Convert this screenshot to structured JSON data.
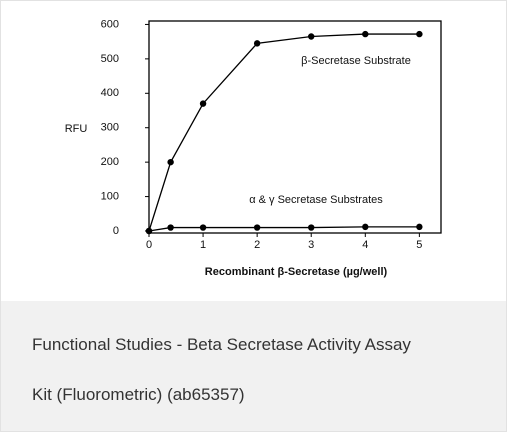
{
  "chart_data": {
    "type": "line",
    "y_label": "RFU",
    "x_label": "Recombinant β-Secretase (µg/well)",
    "x": [
      0,
      0.4,
      1,
      2,
      3,
      4,
      5
    ],
    "series": [
      {
        "name": "β-Secretase Substrate",
        "color": "#000000",
        "values": [
          0,
          200,
          370,
          545,
          565,
          572,
          572
        ]
      },
      {
        "name": "α & γ Secretase Substrates",
        "color": "#000000",
        "values": [
          0,
          10,
          10,
          10,
          10,
          12,
          12
        ]
      }
    ],
    "xlim": [
      0,
      5.4
    ],
    "xticks": [
      0,
      1,
      2,
      3,
      4,
      5
    ],
    "ylim": [
      0,
      610
    ],
    "yticks": [
      0,
      100,
      200,
      300,
      400,
      500,
      600
    ]
  },
  "caption": [
    "Functional Studies - Beta Secretase Activity Assay",
    "Kit (Fluorometric) (ab65357)"
  ]
}
